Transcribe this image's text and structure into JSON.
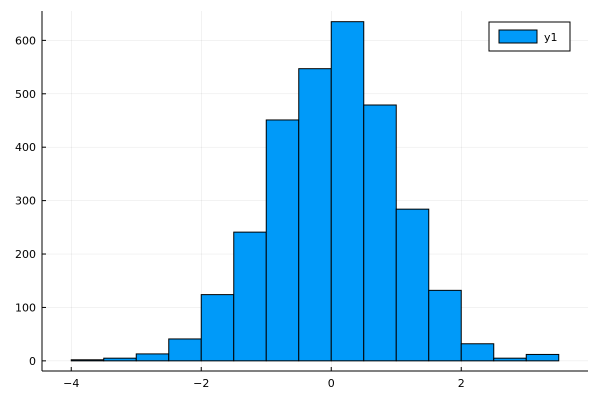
{
  "chart_data": {
    "type": "bar",
    "bin_edges": [
      -4.0,
      -3.5,
      -3.0,
      -2.5,
      -2.0,
      -1.5,
      -1.0,
      -0.5,
      0.0,
      0.5,
      1.0,
      1.5,
      2.0,
      2.5,
      3.0,
      3.5
    ],
    "series": [
      {
        "name": "y1",
        "color": "#009af9",
        "values": [
          2,
          5,
          13,
          41,
          124,
          241,
          451,
          547,
          635,
          479,
          284,
          132,
          32,
          5,
          12
        ]
      }
    ],
    "x_ticks": [
      {
        "value": -4,
        "label": "−4"
      },
      {
        "value": -2,
        "label": "−2"
      },
      {
        "value": 0,
        "label": "0"
      },
      {
        "value": 2,
        "label": "2"
      }
    ],
    "y_ticks": [
      {
        "value": 0,
        "label": "0"
      },
      {
        "value": 100,
        "label": "100"
      },
      {
        "value": 200,
        "label": "200"
      },
      {
        "value": 300,
        "label": "300"
      },
      {
        "value": 400,
        "label": "400"
      },
      {
        "value": 500,
        "label": "500"
      },
      {
        "value": 600,
        "label": "600"
      }
    ],
    "xlim": [
      -4.45,
      3.95
    ],
    "ylim": [
      -19,
      655
    ],
    "grid": true,
    "legend_placement": "top-right",
    "title": "",
    "xlabel": "",
    "ylabel": ""
  }
}
